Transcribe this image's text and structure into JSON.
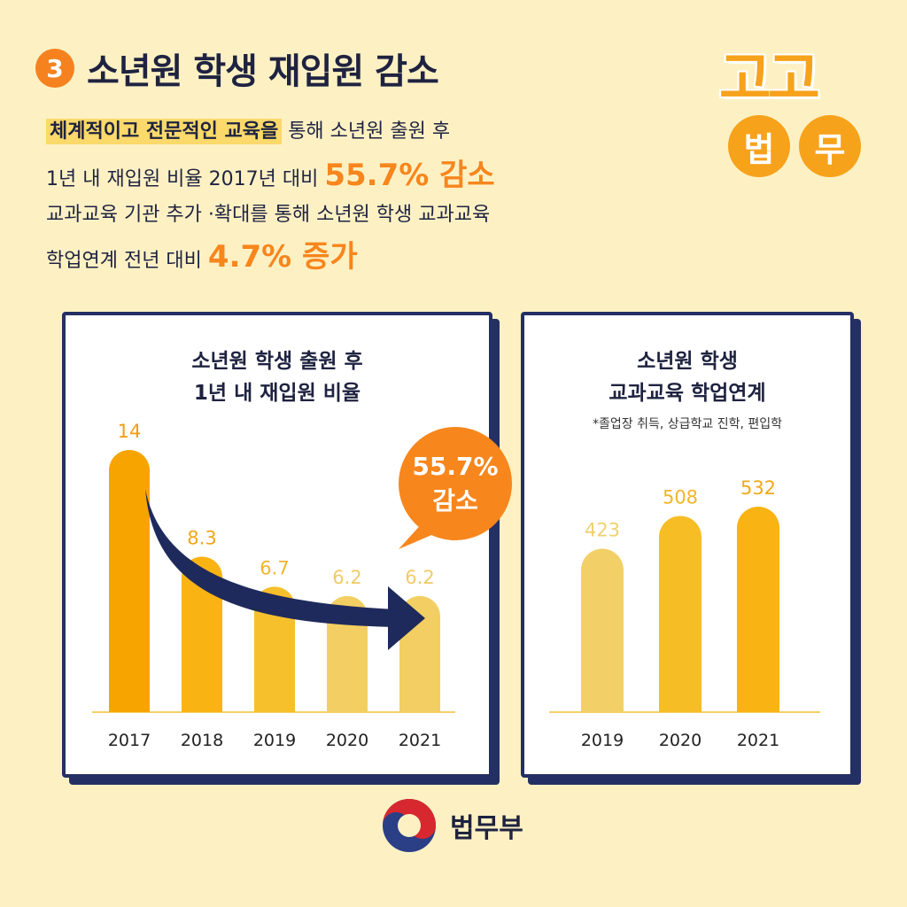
{
  "header": {
    "number": "3",
    "title": "소년원 학생 재입원 감소"
  },
  "logo": {
    "top": "고고",
    "left_circle": "법",
    "right_circle": "무"
  },
  "description": {
    "line1_highlight": "체계적이고 전문적인 교육을",
    "line1_rest": " 통해  소년원 출원 후",
    "line2_pre": "1년 내 재입원 비율 2017년 대비 ",
    "line2_stat": "55.7% 감소",
    "line3": "교과교육 기관 추가 ·확대를 통해 소년원 학생 교과교육",
    "line4_pre": "학업연계 전년 대비 ",
    "line4_stat": "4.7% 증가"
  },
  "colors": {
    "background": "#fdf1c4",
    "accent_orange": "#f7861d",
    "navy": "#243063"
  },
  "chart_data": [
    {
      "type": "bar",
      "title_line1": "소년원 학생 출원 후",
      "title_line2": "1년 내 재입원 비율",
      "categories": [
        "2017",
        "2018",
        "2019",
        "2020",
        "2021"
      ],
      "values": [
        14,
        8.3,
        6.7,
        6.2,
        6.2
      ],
      "value_labels": [
        "14",
        "8.3",
        "6.7",
        "6.2",
        "6.2"
      ],
      "bar_colors": [
        "#f7a400",
        "#f9b312",
        "#f6bf2c",
        "#f3cf63",
        "#f3cf63"
      ],
      "label_colors": [
        "#f39c12",
        "#f0a81a",
        "#f0b42f",
        "#efcb68",
        "#efcb68"
      ],
      "callout": {
        "line1": "55.7%",
        "line2": "감소",
        "color": "#f7861d"
      },
      "trend_arrow": "down",
      "ylim": [
        0,
        14
      ]
    },
    {
      "type": "bar",
      "title_line1": "소년원 학생",
      "title_line2": "교과교육 학업연계",
      "note": "*졸업장 취득, 상급학교 진학, 편입학",
      "categories": [
        "2019",
        "2020",
        "2021"
      ],
      "values": [
        423,
        508,
        532
      ],
      "value_labels": [
        "423",
        "508",
        "532"
      ],
      "bar_colors": [
        "#f3d067",
        "#f7bd25",
        "#f9b312"
      ],
      "label_colors": [
        "#efd16f",
        "#f3b52b",
        "#f0a81a"
      ],
      "ylim": [
        0,
        532
      ]
    }
  ],
  "footer": {
    "ministry": "법무부"
  }
}
